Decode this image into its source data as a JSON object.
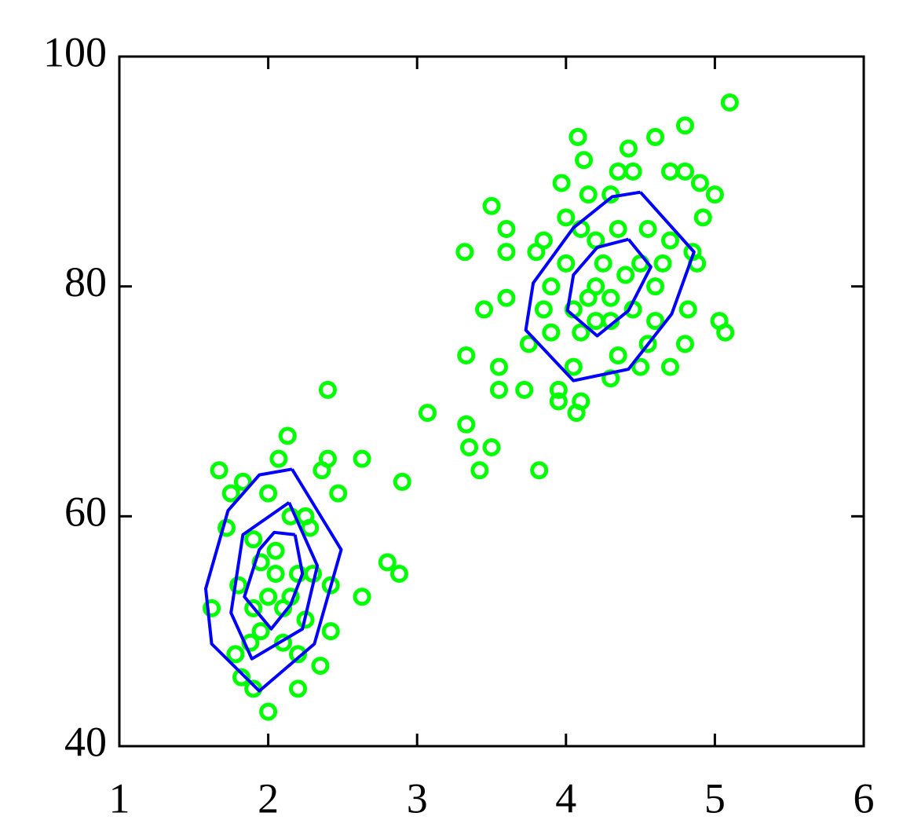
{
  "chart_data": {
    "type": "scatter",
    "xlim": [
      1,
      6
    ],
    "ylim": [
      40,
      100
    ],
    "xticks": [
      1,
      2,
      3,
      4,
      5,
      6
    ],
    "yticks": [
      40,
      60,
      80,
      100
    ],
    "series": [
      {
        "type": "scatter",
        "color": "#00ff00",
        "x": [
          1.62,
          1.67,
          1.75,
          1.83,
          1.72,
          2.0,
          2.07,
          2.13,
          2.36,
          2.4,
          2.47,
          2.4,
          2.63,
          2.9,
          2.8,
          2.88,
          2.63,
          2.42,
          2.35,
          2.2,
          2.2,
          2.0,
          1.9,
          1.82,
          1.78,
          1.8,
          1.9,
          2.05,
          2.15,
          2.25,
          2.28,
          2.3,
          2.2,
          2.1,
          2.0,
          1.95,
          1.9,
          2.05,
          1.95,
          2.15,
          2.25,
          2.42,
          1.88,
          2.1,
          3.07,
          3.33,
          3.35,
          3.42,
          3.5,
          3.33,
          3.32,
          3.45,
          3.5,
          3.55,
          3.55,
          3.6,
          3.6,
          3.6,
          3.72,
          3.82,
          3.75,
          3.8,
          3.85,
          3.9,
          3.95,
          3.95,
          4.07,
          4.1,
          4.05,
          3.97,
          4.0,
          4.08,
          4.12,
          4.15,
          4.3,
          4.35,
          4.42,
          4.45,
          4.6,
          4.8,
          5.1,
          4.7,
          4.8,
          4.9,
          5.0,
          4.92,
          4.85,
          4.88,
          4.82,
          4.8,
          4.7,
          5.03,
          5.07,
          4.5,
          4.55,
          4.3,
          4.35,
          4.2,
          4.2,
          4.3,
          4.4,
          4.5,
          4.55,
          4.6,
          4.25,
          4.15,
          4.05,
          4.0,
          3.9,
          3.85,
          4.1,
          4.45,
          4.6,
          4.7,
          4.65,
          4.35,
          4.2,
          4.1,
          4.3
        ],
        "y": [
          52,
          64,
          62,
          63,
          59,
          62,
          65,
          67,
          64,
          65,
          62,
          71,
          65,
          63,
          56,
          55,
          53,
          50,
          47,
          45,
          48,
          43,
          45,
          46,
          48,
          54,
          58,
          57,
          60,
          60,
          59,
          55,
          55,
          52,
          53,
          50,
          52,
          55,
          56,
          53,
          51,
          54,
          49,
          49,
          69,
          68,
          66,
          64,
          66,
          74,
          83,
          78,
          87,
          73,
          71,
          79,
          83,
          85,
          71,
          64,
          75,
          83,
          84,
          76,
          71,
          70,
          69,
          70,
          73,
          89,
          86,
          93,
          91,
          88,
          88,
          90,
          92,
          90,
          93,
          94,
          96,
          90,
          90,
          89,
          88,
          86,
          83,
          82,
          78,
          75,
          73,
          77,
          76,
          73,
          75,
          72,
          74,
          77,
          80,
          79,
          81,
          82,
          85,
          80,
          82,
          79,
          78,
          82,
          80,
          78,
          76,
          78,
          77,
          84,
          82,
          85,
          84,
          85,
          77
        ]
      },
      {
        "type": "line",
        "color": "#0000ff",
        "x": [
          2.16,
          2.49,
          2.31,
          1.94,
          1.62,
          1.58,
          1.73,
          1.94,
          2.16
        ],
        "y": [
          64.1,
          57.1,
          48.9,
          44.8,
          48.9,
          53.7,
          60.5,
          63.6,
          64.1
        ]
      },
      {
        "type": "line",
        "color": "#0000ff",
        "x": [
          2.14,
          2.33,
          2.23,
          1.89,
          1.75,
          1.83,
          2.14
        ],
        "y": [
          61.2,
          55.7,
          50.2,
          47.6,
          51.6,
          58.4,
          61.2
        ]
      },
      {
        "type": "line",
        "color": "#0000ff",
        "x": [
          2.18,
          2.23,
          2.15,
          2.02,
          1.84,
          1.94,
          2.04,
          2.18
        ],
        "y": [
          58.4,
          55,
          52.3,
          50.2,
          53,
          57.1,
          58.6,
          58.4
        ]
      },
      {
        "type": "line",
        "color": "#0000ff",
        "x": [
          4.5,
          4.86,
          4.71,
          4.42,
          4.05,
          3.73,
          3.78,
          4.05,
          4.31,
          4.5
        ],
        "y": [
          88.2,
          83,
          77.6,
          72.8,
          71.8,
          76.2,
          80.3,
          85.1,
          87.8,
          88.2
        ]
      },
      {
        "type": "line",
        "color": "#0000ff",
        "x": [
          4.42,
          4.57,
          4.42,
          4.21,
          4.01,
          4.05,
          4.21,
          4.42
        ],
        "y": [
          84.1,
          81.7,
          77.9,
          75.7,
          77.9,
          81,
          83.4,
          84.1
        ]
      }
    ]
  }
}
